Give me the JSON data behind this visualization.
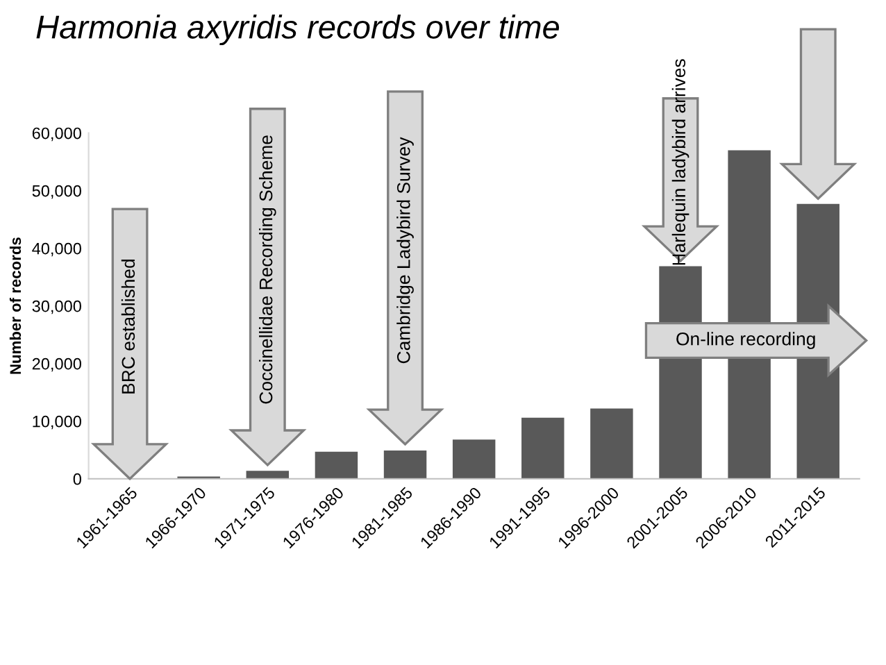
{
  "chart_data": {
    "type": "bar",
    "title": "Harmonia axyridis records over time",
    "ylabel": "Number of records",
    "categories": [
      "1961-1965",
      "1966-1970",
      "1971-1975",
      "1976-1980",
      "1981-1985",
      "1986-1990",
      "1991-1995",
      "1996-2000",
      "2001-2005",
      "2006-2010",
      "2011-2015"
    ],
    "values": [
      100,
      400,
      1400,
      4700,
      4900,
      6800,
      10600,
      12200,
      36900,
      57000,
      47700
    ],
    "color": "#595959",
    "ylim": [
      0,
      60000
    ],
    "yticks": [
      {
        "value": 0,
        "label": "0"
      },
      {
        "value": 10000,
        "label": "10,000"
      },
      {
        "value": 20000,
        "label": "20,000"
      },
      {
        "value": 30000,
        "label": "30,000"
      },
      {
        "value": 40000,
        "label": "40,000"
      },
      {
        "value": 50000,
        "label": "50,000"
      },
      {
        "value": 60000,
        "label": "60,000"
      }
    ],
    "annotations": [
      "BRC established",
      "Coccinellidae Recording Scheme",
      "Cambridge Ladybird Survey",
      "Harlequin ladybird arrives",
      "On-line recording"
    ],
    "grid": false
  }
}
